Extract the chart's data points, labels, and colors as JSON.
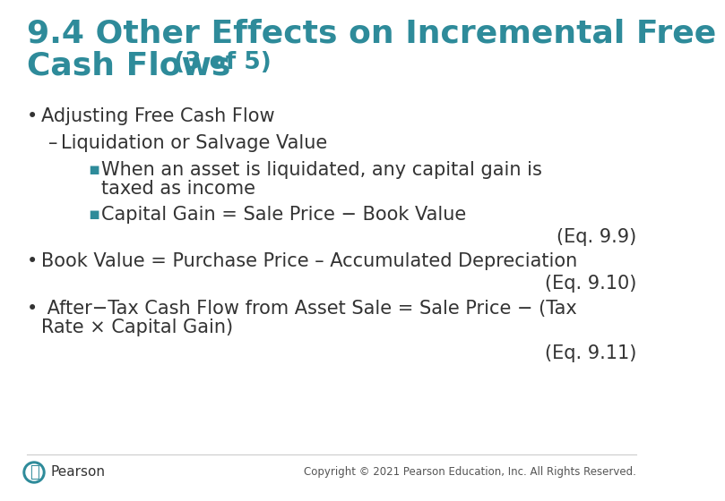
{
  "title_color": "#2e8b9a",
  "background_color": "#ffffff",
  "body_text_color": "#333333",
  "footer_text": "Copyright © 2021 Pearson Education, Inc. All Rights Reserved.",
  "title_line1": "9.4 Other Effects on Incremental Free",
  "title_line2_main": "Cash Flows",
  "title_line2_suffix": " (3 of 5)",
  "title_fontsize": 26,
  "title_suffix_fontsize": 19,
  "body_fontsize": 15,
  "eq_fontsize": 15,
  "footer_fontsize": 8.5,
  "pearson_fontsize": 11
}
